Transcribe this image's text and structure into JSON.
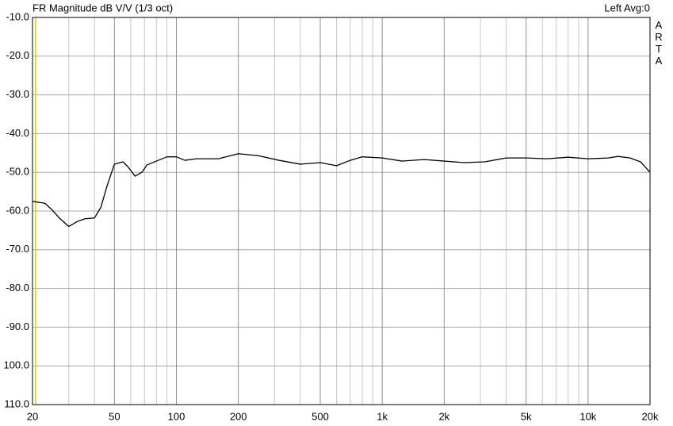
{
  "chart_data": {
    "type": "line",
    "title": "FR Magnitude dB V/V (1/3 oct)",
    "status": "Left  Avg:0",
    "side_label": "ARTA",
    "log_x": true,
    "grid": true,
    "xlim": [
      20,
      20000
    ],
    "ylim": [
      -110,
      -10
    ],
    "xticks": [
      20,
      50,
      100,
      200,
      500,
      {
        "value": 1000,
        "label": "1k"
      },
      {
        "value": 2000,
        "label": "2k"
      },
      {
        "value": 5000,
        "label": "5k"
      },
      {
        "value": 10000,
        "label": "10k"
      },
      {
        "value": 20000,
        "label": "20k"
      }
    ],
    "x_minor_grid": [
      30,
      40,
      60,
      70,
      80,
      90,
      300,
      400,
      600,
      700,
      800,
      900,
      3000,
      4000,
      6000,
      7000,
      8000,
      9000
    ],
    "yticks": [
      {
        "value": -10,
        "label": "-10.0"
      },
      {
        "value": -20,
        "label": "-20.0"
      },
      {
        "value": -30,
        "label": "-30.0"
      },
      {
        "value": -40,
        "label": "-40.0"
      },
      {
        "value": -50,
        "label": "-50.0"
      },
      {
        "value": -60,
        "label": "-60.0"
      },
      {
        "value": -70,
        "label": "-70.0"
      },
      {
        "value": -80,
        "label": "-80.0"
      },
      {
        "value": -90,
        "label": "-90.0"
      },
      {
        "value": -100,
        "label": "100.0"
      },
      {
        "value": -110,
        "label": "110.0"
      }
    ],
    "cursor_x": 20.7,
    "cursor_color": "#e8c800",
    "x": [
      20,
      23,
      25,
      27,
      30,
      33,
      36,
      40,
      43,
      46,
      50,
      55,
      58,
      63,
      68,
      72,
      80,
      90,
      100,
      110,
      125,
      160,
      200,
      250,
      315,
      400,
      500,
      600,
      700,
      800,
      1000,
      1250,
      1600,
      2000,
      2500,
      3150,
      4000,
      5000,
      6300,
      8000,
      10000,
      12500,
      14000,
      16000,
      18000,
      20000
    ],
    "series": [
      {
        "color": "#000000",
        "values": [
          -57.5,
          -58,
          -59.8,
          -61.8,
          -64,
          -62.7,
          -62,
          -61.8,
          -59,
          -53.6,
          -47.9,
          -47.3,
          -48.5,
          -51,
          -50,
          -48.1,
          -47.1,
          -46,
          -46,
          -46.9,
          -46.5,
          -46.5,
          -45.2,
          -45.7,
          -46.9,
          -47.9,
          -47.5,
          -48.3,
          -46.9,
          -46,
          -46.3,
          -47.1,
          -46.7,
          -47.1,
          -47.5,
          -47.3,
          -46.3,
          -46.3,
          -46.5,
          -46.1,
          -46.5,
          -46.3,
          -45.9,
          -46.3,
          -47.3,
          -50
        ]
      }
    ]
  }
}
